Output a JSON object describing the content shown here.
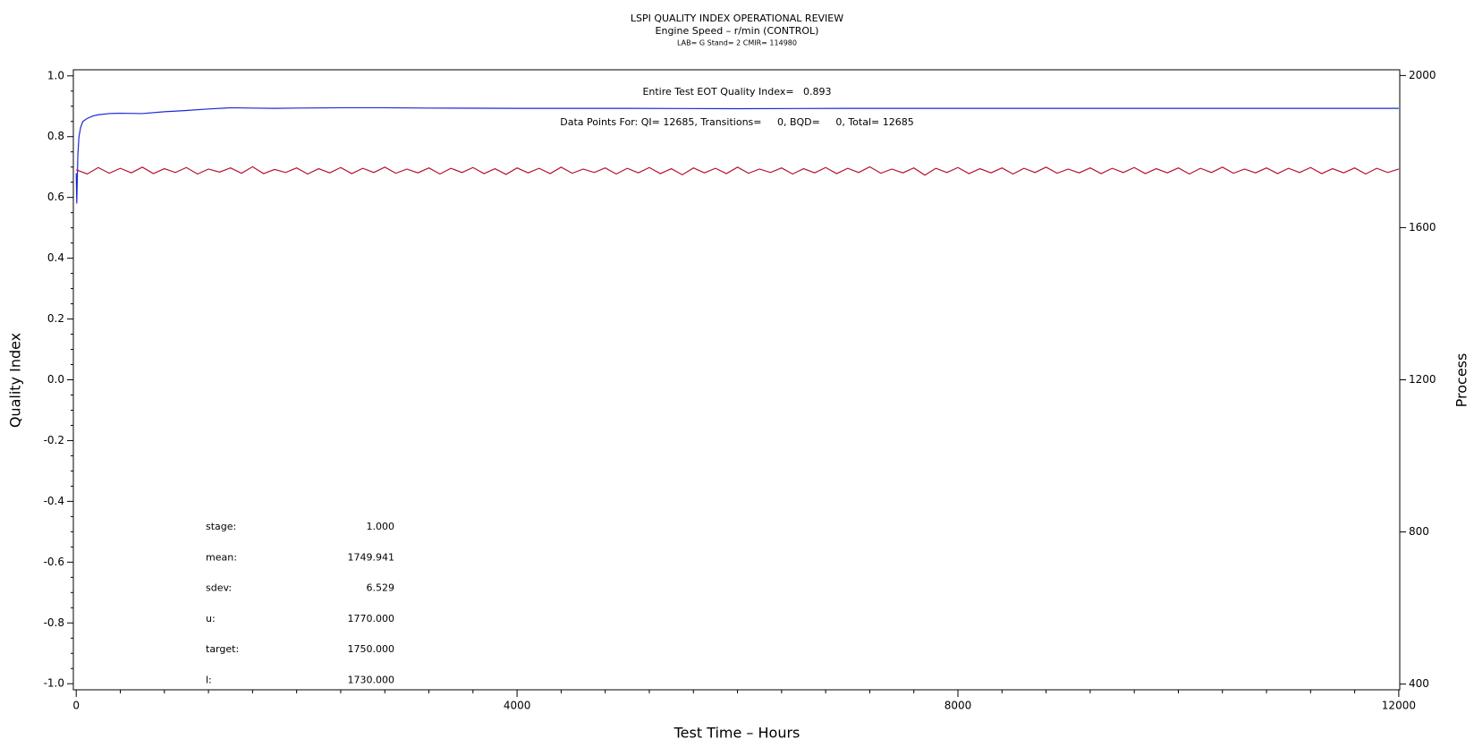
{
  "chart_data": {
    "type": "line",
    "title": "LSPI QUALITY INDEX OPERATIONAL REVIEW",
    "subtitle": "Engine Speed – r/min (CONTROL)",
    "subtitle2": "LAB= G Stand= 2 CMIR= 114980",
    "xlabel": "Test Time – Hours",
    "ylabel": "Quality Index",
    "y2label": "Process",
    "annotations": [
      "Entire Test EOT Quality Index=   0.893",
      "Data Points For: QI= 12685, Transitions=     0, BQD=     0, Total= 12685"
    ],
    "stats": [
      {
        "label": "stage:",
        "value": "1.000"
      },
      {
        "label": "mean:",
        "value": "1749.941"
      },
      {
        "label": "sdev:",
        "value": "6.529"
      },
      {
        "label": "u:",
        "value": "1770.000"
      },
      {
        "label": "target:",
        "value": "1750.000"
      },
      {
        "label": "l:",
        "value": "1730.000"
      }
    ],
    "xlim": [
      -26,
      12009
    ],
    "xticks": [
      0,
      4000,
      8000,
      12000
    ],
    "xminor": [
      400,
      800,
      1200,
      1600,
      2000,
      2400,
      2800,
      3200,
      3600,
      4400,
      4800,
      5200,
      5600,
      6000,
      6400,
      6800,
      7200,
      7600,
      8400,
      8800,
      9200,
      9600,
      10000,
      10400,
      10800,
      11200,
      11600
    ],
    "ylim": [
      -1.02,
      1.02
    ],
    "yticks": [
      {
        "value": -1,
        "label": "-1.0"
      },
      -0.8,
      -0.6,
      -0.4,
      -0.2,
      {
        "value": 0,
        "label": "0.0"
      },
      0.2,
      0.4,
      0.6,
      0.8,
      {
        "value": 1,
        "label": "1.0"
      }
    ],
    "yminor": [
      -0.95,
      -0.9,
      -0.85,
      -0.75,
      -0.7,
      -0.65,
      -0.55,
      -0.5,
      -0.45,
      -0.35,
      -0.3,
      -0.25,
      -0.15,
      -0.1,
      -0.05,
      0.05,
      0.1,
      0.15,
      0.25,
      0.3,
      0.35,
      0.45,
      0.5,
      0.55,
      0.65,
      0.7,
      0.75,
      0.85,
      0.9,
      0.95
    ],
    "y2lim": [
      385,
      2015
    ],
    "y2ticks": [
      400,
      800,
      1200,
      1600,
      2000
    ],
    "series": [
      {
        "color": "#1a2ad6",
        "axis": "y",
        "x": [
          0,
          5,
          10,
          15,
          25,
          40,
          60,
          100,
          150,
          200,
          300,
          400,
          600,
          800,
          1000,
          1200,
          1400,
          1600,
          1800,
          2000,
          2400,
          2800,
          3200,
          4000,
          5000,
          6000,
          7000,
          8000,
          9000,
          10000,
          11000,
          12000
        ],
        "values": [
          0.68,
          0.58,
          0.66,
          0.74,
          0.8,
          0.83,
          0.85,
          0.86,
          0.868,
          0.872,
          0.876,
          0.877,
          0.876,
          0.882,
          0.886,
          0.891,
          0.895,
          0.894,
          0.893,
          0.894,
          0.895,
          0.895,
          0.894,
          0.893,
          0.893,
          0.892,
          0.893,
          0.893,
          0.893,
          0.893,
          0.893,
          0.893
        ]
      },
      {
        "color": "#b5122e",
        "axis": "y2",
        "x": [
          0,
          100,
          200,
          300,
          400,
          500,
          600,
          700,
          800,
          900,
          1000,
          1100,
          1200,
          1300,
          1400,
          1500,
          1600,
          1700,
          1800,
          1900,
          2000,
          2100,
          2200,
          2300,
          2400,
          2500,
          2600,
          2700,
          2800,
          2900,
          3000,
          3100,
          3200,
          3300,
          3400,
          3500,
          3600,
          3700,
          3800,
          3900,
          4000,
          4100,
          4200,
          4300,
          4400,
          4500,
          4600,
          4700,
          4800,
          4900,
          5000,
          5100,
          5200,
          5300,
          5400,
          5500,
          5600,
          5700,
          5800,
          5900,
          6000,
          6100,
          6200,
          6300,
          6400,
          6500,
          6600,
          6700,
          6800,
          6900,
          7000,
          7100,
          7200,
          7300,
          7400,
          7500,
          7600,
          7700,
          7800,
          7900,
          8000,
          8100,
          8200,
          8300,
          8400,
          8500,
          8600,
          8700,
          8800,
          8900,
          9000,
          9100,
          9200,
          9300,
          9400,
          9500,
          9600,
          9700,
          9800,
          9900,
          10000,
          10100,
          10200,
          10300,
          10400,
          10500,
          10600,
          10700,
          10800,
          10900,
          11000,
          11100,
          11200,
          11300,
          11400,
          11500,
          11600,
          11700,
          11800,
          11900,
          12000
        ],
        "values": [
          1752,
          1741,
          1758,
          1743,
          1756,
          1744,
          1759,
          1742,
          1755,
          1745,
          1758,
          1741,
          1754,
          1746,
          1757,
          1743,
          1760,
          1742,
          1753,
          1745,
          1757,
          1741,
          1755,
          1744,
          1758,
          1742,
          1756,
          1745,
          1759,
          1743,
          1754,
          1744,
          1757,
          1741,
          1756,
          1745,
          1758,
          1742,
          1755,
          1740,
          1757,
          1744,
          1756,
          1742,
          1759,
          1743,
          1754,
          1745,
          1757,
          1741,
          1756,
          1744,
          1758,
          1742,
          1755,
          1739,
          1757,
          1744,
          1756,
          1742,
          1759,
          1743,
          1754,
          1745,
          1757,
          1741,
          1755,
          1744,
          1758,
          1742,
          1756,
          1745,
          1760,
          1743,
          1754,
          1744,
          1757,
          1738,
          1756,
          1745,
          1758,
          1742,
          1755,
          1744,
          1757,
          1741,
          1756,
          1745,
          1759,
          1743,
          1754,
          1744,
          1757,
          1742,
          1756,
          1745,
          1758,
          1742,
          1755,
          1744,
          1757,
          1741,
          1756,
          1745,
          1759,
          1743,
          1754,
          1744,
          1757,
          1742,
          1756,
          1745,
          1758,
          1742,
          1755,
          1744,
          1757,
          1741,
          1756,
          1745,
          1754
        ]
      }
    ]
  }
}
